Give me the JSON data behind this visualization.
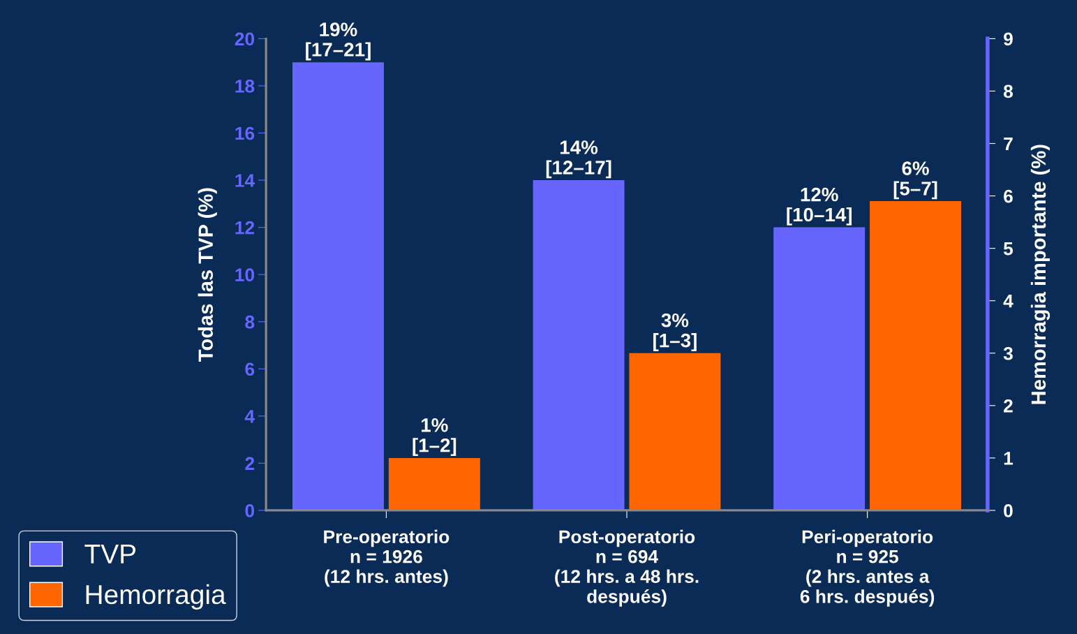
{
  "chart_data": {
    "type": "bar",
    "categories": [
      "Pre-operatorio\nn = 1926\n(12 hrs. antes)",
      "Post-operatorio\nn = 694\n(12 hrs. a 48 hrs.\ndespués)",
      "Peri-operatorio\nn = 925\n(2 hrs. antes a\n6 hrs. después)"
    ],
    "series": [
      {
        "name": "TVP",
        "color": "#6666ff",
        "values": [
          19,
          14,
          12
        ],
        "value_labels": [
          "19%\n[17–21]",
          "14%\n[12–17]",
          "12%\n[10–14]"
        ]
      },
      {
        "name": "Hemorragia",
        "color": "#ff6600",
        "axis": "y2",
        "values": [
          1.0,
          3.0,
          5.9
        ],
        "value_labels": [
          "1%\n[1–2]",
          "3%\n[1–3]",
          "6%\n[5–7]"
        ]
      }
    ],
    "ylabel": "Todas las TVP (%)",
    "y2label": "Hemorragia importante (%)",
    "ylim": [
      0,
      20
    ],
    "yticks": [
      0,
      2,
      4,
      6,
      8,
      10,
      12,
      14,
      16,
      18,
      20
    ],
    "y2lim": [
      0,
      9
    ],
    "y2ticks": [
      0,
      1,
      2,
      3,
      4,
      5,
      6,
      7,
      8,
      9
    ],
    "grid": false,
    "legend": "bottom left"
  }
}
